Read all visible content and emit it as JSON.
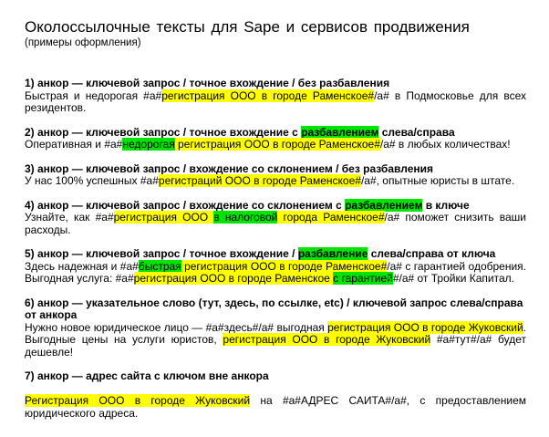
{
  "page": {
    "title": "Околоссылочные тексты для Sape и сервисов продвижения",
    "subtitle": "(примеры оформления)"
  },
  "colors": {
    "background": "#ffffff",
    "text": "#000000",
    "highlight_yellow": "#ffff00",
    "highlight_green": "#00e400"
  },
  "items": [
    {
      "header": [
        {
          "text": "1) анкор — ключевой запрос / точное вхождение / без разбавления",
          "highlight": null
        }
      ],
      "body": [
        {
          "text": "Быстрая и недорогая #a#",
          "highlight": null
        },
        {
          "text": "регистрация ООО в городе Раменское#",
          "highlight": "yellow"
        },
        {
          "text": "/a# в Подмосковье для всех резидентов.",
          "highlight": null
        }
      ]
    },
    {
      "header": [
        {
          "text": "2) анкор — ключевой запрос / точное вхождение с ",
          "highlight": null
        },
        {
          "text": "разбавлением",
          "highlight": "green"
        },
        {
          "text": " слева/справа",
          "highlight": null
        }
      ],
      "body": [
        {
          "text": "Оперативная и #a#",
          "highlight": null
        },
        {
          "text": "недорогая",
          "highlight": "green"
        },
        {
          "text": " регистрация ООО в городе Раменское#",
          "highlight": "yellow"
        },
        {
          "text": "/a# в любых количествах!",
          "highlight": null
        }
      ]
    },
    {
      "header": [
        {
          "text": "3) анкор — ключевой запрос / вхождение со склонением / без разбавления",
          "highlight": null
        }
      ],
      "body": [
        {
          "text": "У нас 100% успешных #a#",
          "highlight": null
        },
        {
          "text": "регистраций ООО в городе Раменское#",
          "highlight": "yellow"
        },
        {
          "text": "/a#, опытные юристы в штате.",
          "highlight": null
        }
      ]
    },
    {
      "header": [
        {
          "text": "4) анкор — ключевой запрос / вхождение со склонением с ",
          "highlight": null
        },
        {
          "text": "разбавлением",
          "highlight": "green"
        },
        {
          "text": " в ключе",
          "highlight": null
        }
      ],
      "body": [
        {
          "text": "Узнайте, как #a#",
          "highlight": null
        },
        {
          "text": "регистрация ООО ",
          "highlight": "yellow"
        },
        {
          "text": "в налоговой",
          "highlight": "green"
        },
        {
          "text": " города Раменское#",
          "highlight": "yellow"
        },
        {
          "text": "/a# поможет снизить ваши расходы.",
          "highlight": null
        }
      ]
    },
    {
      "header": [
        {
          "text": "5) анкор — ключевой запрос / точное вхождение / ",
          "highlight": null
        },
        {
          "text": "разбавление",
          "highlight": "green"
        },
        {
          "text": " слева/справа от ключа",
          "highlight": null
        }
      ],
      "body": [
        {
          "text": "Здесь надежная и #a#",
          "highlight": null
        },
        {
          "text": "быстрая",
          "highlight": "green"
        },
        {
          "text": " регистрация ООО в городе Раменское#",
          "highlight": "yellow"
        },
        {
          "text": "/a# с гарантией одобрения. Выгодная услуга: #a#",
          "highlight": null
        },
        {
          "text": "регистрация ООО в городе Раменское ",
          "highlight": "yellow"
        },
        {
          "text": "с гарантией",
          "highlight": "green"
        },
        {
          "text": "#/a# от Тройки Капитал.",
          "highlight": null
        }
      ]
    },
    {
      "header": [
        {
          "text": "6) анкор — указательное слово (тут, здесь, по ссылке, etc) / ключевой запрос слева/справа от анкора",
          "highlight": null
        }
      ],
      "body": [
        {
          "text": "Нужно новое юридическое лицо — #a#здесь#/a# выгодная ",
          "highlight": null
        },
        {
          "text": "регистрация ООО в городе Жуковский",
          "highlight": "yellow"
        },
        {
          "text": ". Выгодные цены на услуги юристов, ",
          "highlight": null
        },
        {
          "text": "регистрация ООО в городе Жуковский",
          "highlight": "yellow"
        },
        {
          "text": " #a#тут#/a# будет дешевле!",
          "highlight": null
        }
      ]
    },
    {
      "gap_before_body": true,
      "header": [
        {
          "text": "7) анкор — адрес сайта с ключом вне анкора",
          "highlight": null
        }
      ],
      "body": [
        {
          "text": "Регистрация ООО в городе Жуковский",
          "highlight": "yellow"
        },
        {
          "text": " на #a#АДРЕС САИТА#/a#, с предоставлением юридического адреса.",
          "highlight": null
        }
      ]
    }
  ]
}
